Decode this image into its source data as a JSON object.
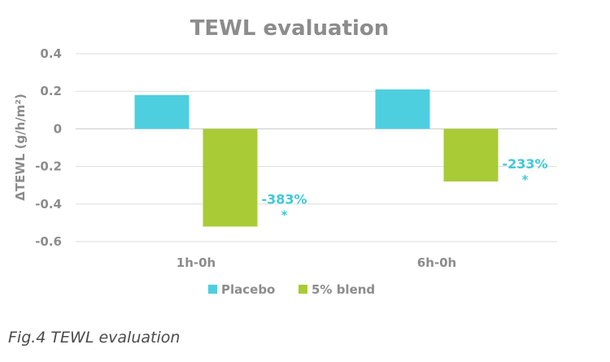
{
  "chart_data": {
    "type": "bar",
    "title": "TEWL evaluation",
    "ylabel": "ΔTEWL (g/h/m²)",
    "xlabel": "",
    "categories": [
      "1h-0h",
      "6h-0h"
    ],
    "series": [
      {
        "name": "Placebo",
        "values": [
          0.18,
          0.21
        ],
        "color": "#4ecfe0"
      },
      {
        "name": "5% blend",
        "values": [
          -0.52,
          -0.28
        ],
        "color": "#a9cb35"
      }
    ],
    "ylim": [
      -0.6,
      0.4
    ],
    "yticks": [
      "-0.6",
      "-0.4",
      "-0.2",
      "0",
      "0.2",
      "0.4"
    ],
    "grid": true,
    "legend": "bottom",
    "annotations": [
      {
        "text": "-383%",
        "mark": "*",
        "category": "1h-0h"
      },
      {
        "text": "-233%",
        "mark": "*",
        "category": "6h-0h"
      }
    ]
  },
  "caption": "Fig.4 TEWL evaluation"
}
